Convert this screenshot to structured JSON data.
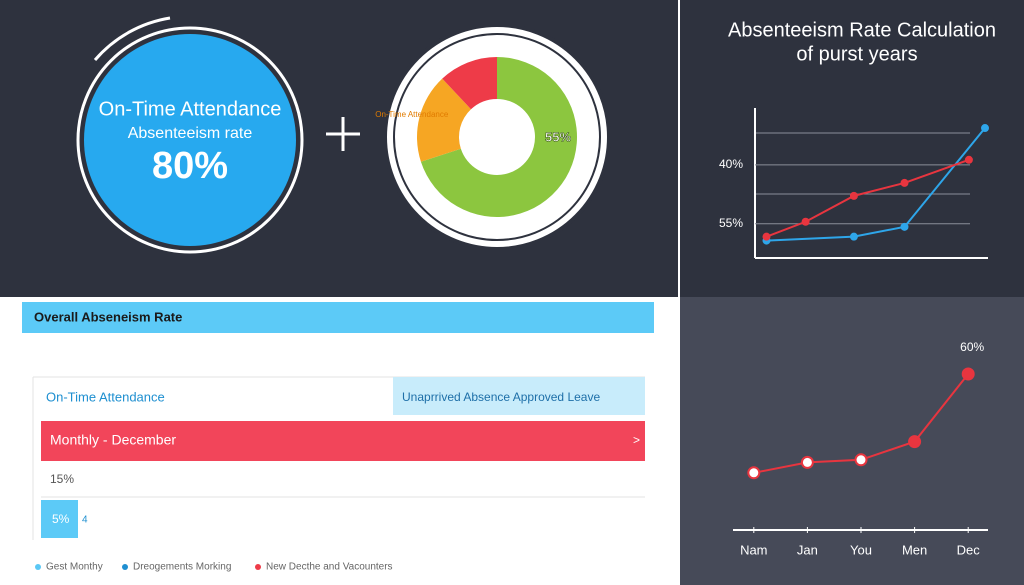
{
  "hero": {
    "title": "On-Time Attendance",
    "subtitle": "Absenteeism rate",
    "value": "80%"
  },
  "chart_data": [
    {
      "type": "pie",
      "categories": [
        null,
        "On-Time Attendance",
        null
      ],
      "values": [
        70,
        18,
        12
      ],
      "colors": [
        "#8cc63f",
        "#f6a623",
        "#ee3b48"
      ],
      "annotations": [
        "55%"
      ]
    },
    {
      "type": "line",
      "title": [
        "Absenteeism Rate Calculation",
        "of purst years"
      ],
      "xlim": [
        0,
        10
      ],
      "ylim": [
        64,
        26
      ],
      "yticks": [
        {
          "value": 40,
          "label": "40%"
        },
        {
          "value": 55,
          "label": "55%"
        }
      ],
      "grid": true,
      "series": [
        {
          "color": "#2ea6ea",
          "x": [
            0.5,
            4.3,
            6.5,
            10
          ],
          "values": [
            59.3,
            58.3,
            55.8,
            30.6
          ]
        },
        {
          "color": "#e8353f",
          "x": [
            0.5,
            2.2,
            4.3,
            6.5,
            9.3
          ],
          "values": [
            58.3,
            54.5,
            47.9,
            44.6,
            38.7
          ]
        }
      ]
    },
    {
      "type": "line",
      "categories": [
        "Nam",
        "Jan",
        "You",
        "Men",
        "Dec"
      ],
      "ylim": [
        0,
        70
      ],
      "series": [
        {
          "color": "#e8353f",
          "values": [
            22,
            26,
            27,
            34,
            60
          ],
          "value_labels": [
            null,
            null,
            null,
            null,
            "60%"
          ]
        }
      ]
    }
  ],
  "panel": {
    "header": "Overall Abseneism Rate",
    "attendance": "On-Time Attendance",
    "absence": "Unaprrived Absence Approved Leave",
    "month": "Monthly - December",
    "arrow": ">",
    "rate": "15%",
    "small": "5%",
    "small_note": "4",
    "legend": [
      {
        "label": "Gest Monthy",
        "color": "#5bc8f5"
      },
      {
        "label": "Dreogements Morking",
        "color": "#1f8fd1"
      },
      {
        "label": "New Decthe and Vacounters",
        "color": "#ee3b48"
      }
    ]
  }
}
